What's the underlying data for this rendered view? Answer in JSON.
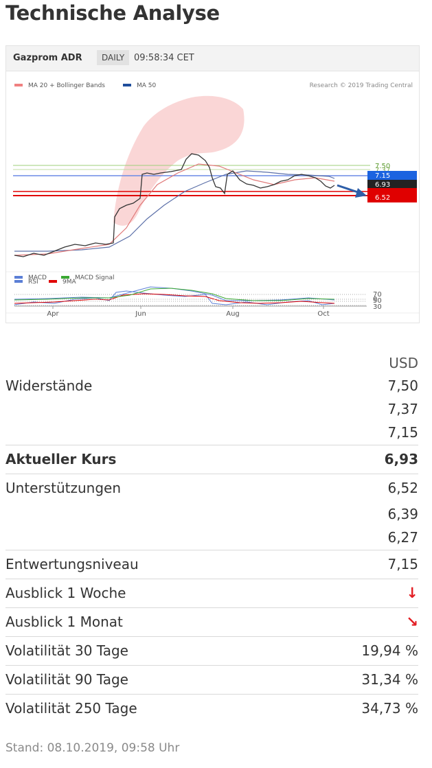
{
  "page": {
    "title": "Technische Analyse"
  },
  "chart": {
    "instrument": "Gazprom ADR",
    "period": "DAILY",
    "time": "09:58:34 CET",
    "legend_top": [
      "MA 20 + Bollinger Bands",
      "MA 50"
    ],
    "copyright": "Research © 2019 Trading Central",
    "price_tags": [
      "7.50",
      "7.37",
      "7.15",
      "6.93",
      "6.52"
    ],
    "legend_rsi": [
      "RSI",
      "9MA"
    ],
    "rsi_levels": [
      "70",
      "50",
      "30"
    ],
    "legend_macd": [
      "MACD",
      "MACD Signal"
    ],
    "macd_zero": "0",
    "x_labels": [
      "Apr",
      "Jun",
      "Aug",
      "Oct"
    ],
    "colors": {
      "bollinger": "#f08080",
      "ma50": "#1f4e9c",
      "rsi": "#5b7fd6",
      "rsi_ma": "#e00000",
      "macd": "#5b7fd6",
      "macd_signal": "#3aa832",
      "support": "#e00000",
      "resistance_line": "#6b8ae6"
    }
  },
  "chart_data": {
    "type": "line",
    "x_ticks": [
      "Apr",
      "Jun",
      "Aug",
      "Oct"
    ],
    "resistances": [
      7.5,
      7.37,
      7.15
    ],
    "current": 6.93,
    "supports": [
      6.52,
      6.39,
      6.27
    ],
    "rsi_levels": [
      70,
      50,
      30
    ]
  },
  "table": {
    "currency": "USD",
    "resistances_label": "Widerstände",
    "resistances": [
      "7,50",
      "7,37",
      "7,15"
    ],
    "current_label": "Aktueller Kurs",
    "current": "6,93",
    "supports_label": "Unterstützungen",
    "supports": [
      "6,52",
      "6,39",
      "6,27"
    ],
    "invalidation_label": "Entwertungsniveau",
    "invalidation": "7,15",
    "outlook_week_label": "Ausblick 1 Woche",
    "outlook_week_icon": "arrow-down-icon",
    "outlook_month_label": "Ausblick 1 Monat",
    "outlook_month_icon": "arrow-down-right-icon",
    "vol30_label": "Volatilität 30 Tage",
    "vol30": "19,94 %",
    "vol90_label": "Volatilität 90 Tage",
    "vol90": "31,34 %",
    "vol250_label": "Volatilität 250 Tage",
    "vol250": "34,73 %"
  },
  "footer": {
    "stand": "Stand: 08.10.2019, 09:58 Uhr"
  }
}
